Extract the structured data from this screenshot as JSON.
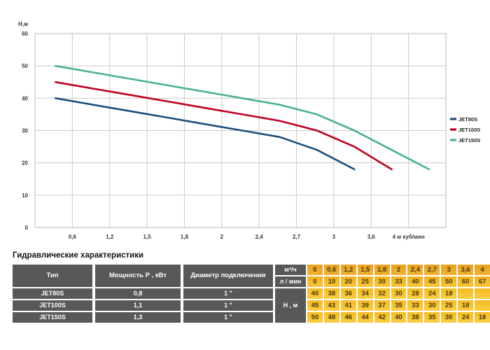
{
  "chart_data": {
    "type": "line",
    "title": "",
    "ylabel": "Н,м",
    "xlabel": "м куб/мин",
    "x_ticks": [
      "0,6",
      "1,2",
      "1,5",
      "1,8",
      "2",
      "2,4",
      "2,7",
      "3",
      "3,6",
      "4 м куб/мин"
    ],
    "x_values": [
      0,
      0.6,
      1.2,
      1.5,
      1.8,
      2,
      2.4,
      2.7,
      3,
      3.6,
      4
    ],
    "y_ticks": [
      0,
      10,
      20,
      30,
      40,
      50,
      60
    ],
    "ylim": [
      0,
      60
    ],
    "grid": true,
    "legend_position": "right",
    "series": [
      {
        "name": "JET80S",
        "color": "#1a4e7a",
        "values": [
          40,
          38,
          36,
          34,
          32,
          30,
          28,
          24,
          18
        ]
      },
      {
        "name": "JET100S",
        "color": "#c00020",
        "values": [
          45,
          43,
          41,
          39,
          37,
          35,
          33,
          30,
          25,
          18
        ]
      },
      {
        "name": "JET150S",
        "color": "#4bb286",
        "values": [
          50,
          48,
          46,
          44,
          42,
          40,
          38,
          35,
          30,
          24,
          18
        ]
      }
    ]
  },
  "table": {
    "title": "Гидравлические характеристики",
    "spec": {
      "headers": [
        "Тип",
        "Мощность Р , кВт",
        "Диаметр подключения"
      ],
      "rows": [
        [
          "JET80S",
          "0,8",
          "1 \""
        ],
        [
          "JET100S",
          "1,1",
          "1 \""
        ],
        [
          "JET150S",
          "1,3",
          "1 \""
        ]
      ]
    },
    "performance": {
      "row_labels": [
        "м³/ч",
        "л / мин",
        "Н , м"
      ],
      "flow_m3h": [
        "0",
        "0,6",
        "1,2",
        "1,5",
        "1,8",
        "2",
        "2,4",
        "2,7",
        "3",
        "3,6",
        "4"
      ],
      "flow_lmin": [
        "0",
        "10",
        "20",
        "25",
        "30",
        "33",
        "40",
        "45",
        "50",
        "60",
        "67"
      ],
      "head_m": [
        [
          "40",
          "38",
          "36",
          "34",
          "32",
          "30",
          "28",
          "24",
          "18",
          "",
          ""
        ],
        [
          "45",
          "43",
          "41",
          "39",
          "37",
          "35",
          "33",
          "30",
          "25",
          "18",
          ""
        ],
        [
          "50",
          "48",
          "46",
          "44",
          "42",
          "40",
          "38",
          "35",
          "30",
          "24",
          "18"
        ]
      ]
    },
    "colors": {
      "header_bg": "#57585a",
      "row1_bg": "#efa414",
      "row2_bg": "#f6b71e",
      "data_bg": "#fcc32a"
    }
  }
}
